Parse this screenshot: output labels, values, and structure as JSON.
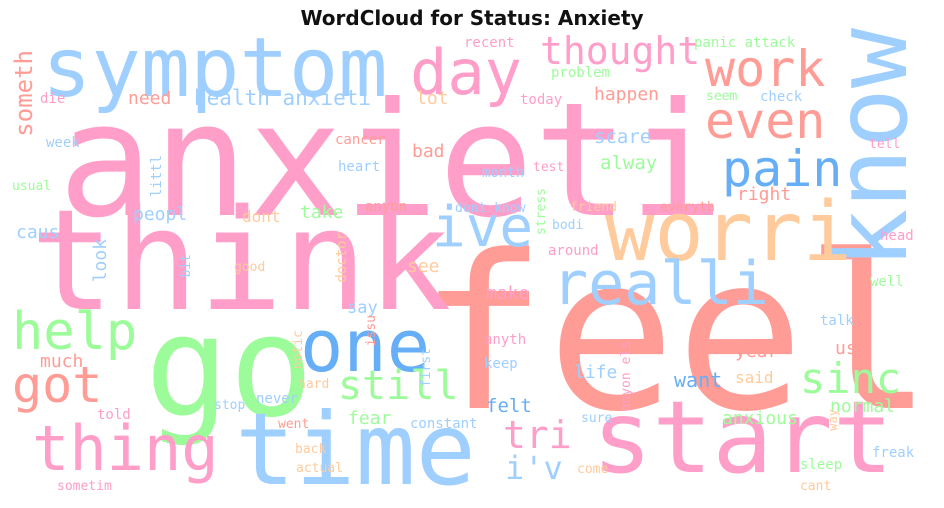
{
  "title": "WordCloud for Status: Anxiety",
  "palette": {
    "pink": "#ff9ec8",
    "blue": "#9fcfff",
    "salmon": "#ff9c96",
    "green": "#9dfc9a",
    "peach": "#ffcb9c",
    "darkblue": "#66aef6"
  },
  "words": [
    {
      "text": "anxieti",
      "color": "pink"
    },
    {
      "text": "feel",
      "color": "salmon"
    },
    {
      "text": "think",
      "color": "pink"
    },
    {
      "text": "go",
      "color": "green"
    },
    {
      "text": "know",
      "color": "blue",
      "vertical": true
    },
    {
      "text": "time",
      "color": "blue"
    },
    {
      "text": "start",
      "color": "pink"
    },
    {
      "text": "symptom",
      "color": "blue"
    },
    {
      "text": "worri",
      "color": "peach"
    },
    {
      "text": "one",
      "color": "darkblue"
    },
    {
      "text": "realli",
      "color": "blue"
    },
    {
      "text": "thing",
      "color": "pink"
    },
    {
      "text": "day",
      "color": "pink"
    },
    {
      "text": "work",
      "color": "salmon"
    },
    {
      "text": "even",
      "color": "salmon"
    },
    {
      "text": "ive",
      "color": "blue"
    },
    {
      "text": "pain",
      "color": "darkblue"
    },
    {
      "text": "help",
      "color": "green"
    },
    {
      "text": "got",
      "color": "salmon"
    },
    {
      "text": "still",
      "color": "green"
    },
    {
      "text": "sinc",
      "color": "green"
    },
    {
      "text": "thought",
      "color": "pink"
    },
    {
      "text": "tri",
      "color": "pink"
    },
    {
      "text": "i'v",
      "color": "blue"
    },
    {
      "text": "someth",
      "color": "salmon",
      "vertical": true
    },
    {
      "text": "health anxieti",
      "color": "blue"
    },
    {
      "text": "need",
      "color": "salmon"
    },
    {
      "text": "lot",
      "color": "peach"
    },
    {
      "text": "happen",
      "color": "salmon"
    },
    {
      "text": "scare",
      "color": "blue"
    },
    {
      "text": "alway",
      "color": "green"
    },
    {
      "text": "bad",
      "color": "salmon"
    },
    {
      "text": "right",
      "color": "salmon"
    },
    {
      "text": "caus",
      "color": "blue"
    },
    {
      "text": "peopl",
      "color": "blue"
    },
    {
      "text": "take",
      "color": "green"
    },
    {
      "text": "dont",
      "color": "peach"
    },
    {
      "text": "look",
      "color": "blue",
      "vertical": true
    },
    {
      "text": "see",
      "color": "peach"
    },
    {
      "text": "make",
      "color": "pink"
    },
    {
      "text": "say",
      "color": "blue"
    },
    {
      "text": "much",
      "color": "salmon"
    },
    {
      "text": "year",
      "color": "salmon"
    },
    {
      "text": "use",
      "color": "salmon"
    },
    {
      "text": "life",
      "color": "blue"
    },
    {
      "text": "want",
      "color": "darkblue"
    },
    {
      "text": "said",
      "color": "peach"
    },
    {
      "text": "felt",
      "color": "darkblue"
    },
    {
      "text": "fear",
      "color": "green"
    },
    {
      "text": "anxious",
      "color": "green"
    },
    {
      "text": "normal",
      "color": "green"
    },
    {
      "text": "panic attack",
      "color": "green"
    },
    {
      "text": "recent",
      "color": "pink"
    },
    {
      "text": "problem",
      "color": "green"
    },
    {
      "text": "today",
      "color": "pink"
    },
    {
      "text": "seem",
      "color": "green"
    },
    {
      "text": "check",
      "color": "blue"
    },
    {
      "text": "die",
      "color": "pink"
    },
    {
      "text": "week",
      "color": "blue"
    },
    {
      "text": "usual",
      "color": "green"
    },
    {
      "text": "cancer",
      "color": "salmon"
    },
    {
      "text": "heart",
      "color": "blue"
    },
    {
      "text": "test",
      "color": "pink"
    },
    {
      "text": "tell",
      "color": "pink"
    },
    {
      "text": "month",
      "color": "blue"
    },
    {
      "text": "littl",
      "color": "blue",
      "vertical": true
    },
    {
      "text": "anyon",
      "color": "salmon"
    },
    {
      "text": "dont know",
      "color": "blue"
    },
    {
      "text": "friend",
      "color": "peach"
    },
    {
      "text": "everyth",
      "color": "salmon"
    },
    {
      "text": "stress",
      "color": "green",
      "vertical": true
    },
    {
      "text": "bodi",
      "color": "blue"
    },
    {
      "text": "around",
      "color": "pink"
    },
    {
      "text": "head",
      "color": "pink"
    },
    {
      "text": "bit",
      "color": "blue",
      "vertical": true
    },
    {
      "text": "good",
      "color": "peach"
    },
    {
      "text": "doctor",
      "color": "peach",
      "vertical": true
    },
    {
      "text": "well",
      "color": "green"
    },
    {
      "text": "notic",
      "color": "peach",
      "vertical": true
    },
    {
      "text": "issu",
      "color": "salmon",
      "vertical": true
    },
    {
      "text": "talk",
      "color": "blue"
    },
    {
      "text": "first",
      "color": "blue",
      "vertical": true
    },
    {
      "text": "anyth",
      "color": "pink"
    },
    {
      "text": "keep",
      "color": "blue"
    },
    {
      "text": "anyon els",
      "color": "pink",
      "vertical": true
    },
    {
      "text": "hard",
      "color": "peach"
    },
    {
      "text": "never",
      "color": "blue"
    },
    {
      "text": "stop",
      "color": "blue"
    },
    {
      "text": "told",
      "color": "pink"
    },
    {
      "text": "constant",
      "color": "blue"
    },
    {
      "text": "sure",
      "color": "blue"
    },
    {
      "text": "way",
      "color": "peach",
      "vertical": true
    },
    {
      "text": "went",
      "color": "salmon"
    },
    {
      "text": "back",
      "color": "peach"
    },
    {
      "text": "actual",
      "color": "peach"
    },
    {
      "text": "come",
      "color": "peach"
    },
    {
      "text": "freak",
      "color": "blue"
    },
    {
      "text": "sleep",
      "color": "green"
    },
    {
      "text": "cant",
      "color": "peach"
    },
    {
      "text": "sometim",
      "color": "pink"
    }
  ]
}
